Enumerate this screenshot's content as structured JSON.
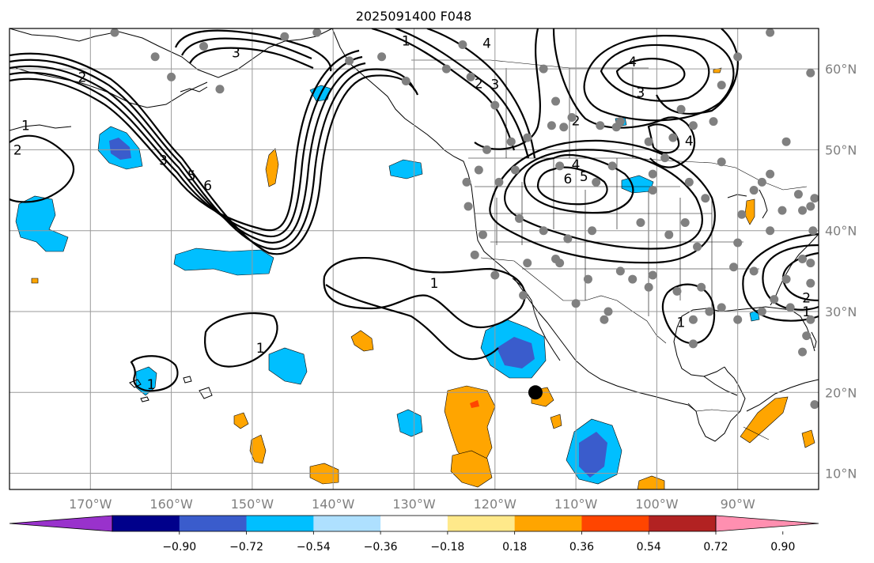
{
  "title": "2025091400 F048",
  "map": {
    "lon_range": [
      -180,
      -80
    ],
    "lat_range": [
      8,
      65
    ],
    "lon_ticks": [
      {
        "value": -170,
        "label": "170°W"
      },
      {
        "value": -160,
        "label": "160°W"
      },
      {
        "value": -150,
        "label": "150°W"
      },
      {
        "value": -140,
        "label": "140°W"
      },
      {
        "value": -130,
        "label": "130°W"
      },
      {
        "value": -120,
        "label": "120°W"
      },
      {
        "value": -110,
        "label": "110°W"
      },
      {
        "value": -100,
        "label": "100°W"
      },
      {
        "value": -90,
        "label": "90°W"
      }
    ],
    "lat_ticks": [
      {
        "value": 60,
        "label": "60°N"
      },
      {
        "value": 50,
        "label": "50°N"
      },
      {
        "value": 40,
        "label": "40°N"
      },
      {
        "value": 30,
        "label": "30°N"
      },
      {
        "value": 20,
        "label": "20°N"
      },
      {
        "value": 10,
        "label": "10°N"
      }
    ],
    "marker": {
      "lon": -115,
      "lat": 20,
      "color": "#000000"
    },
    "station_color": "#808080",
    "contour_labels": [
      {
        "text": "3",
        "lon": -152,
        "lat": 62
      },
      {
        "text": "2",
        "lon": -171,
        "lat": 59
      },
      {
        "text": "1",
        "lon": -178,
        "lat": 53
      },
      {
        "text": "2",
        "lon": -179,
        "lat": 50
      },
      {
        "text": "3",
        "lon": -161,
        "lat": 48.7
      },
      {
        "text": "5",
        "lon": -157.5,
        "lat": 46.8
      },
      {
        "text": "6",
        "lon": -155.5,
        "lat": 45.6
      },
      {
        "text": "1",
        "lon": -131,
        "lat": 63.5
      },
      {
        "text": "4",
        "lon": -121,
        "lat": 63.2
      },
      {
        "text": "2",
        "lon": -122,
        "lat": 58.2
      },
      {
        "text": "3",
        "lon": -120,
        "lat": 58.1
      },
      {
        "text": "4",
        "lon": -103,
        "lat": 60.9
      },
      {
        "text": "3",
        "lon": -102,
        "lat": 57.1
      },
      {
        "text": "2",
        "lon": -110,
        "lat": 53.6
      },
      {
        "text": "4",
        "lon": -96,
        "lat": 51.1
      },
      {
        "text": "4",
        "lon": -110,
        "lat": 48.2
      },
      {
        "text": "6",
        "lon": -111,
        "lat": 46.4
      },
      {
        "text": "5",
        "lon": -109,
        "lat": 46.7
      },
      {
        "text": "1",
        "lon": -127.5,
        "lat": 33.5
      },
      {
        "text": "1",
        "lon": -149,
        "lat": 25.5
      },
      {
        "text": "1",
        "lon": -162.5,
        "lat": 21
      },
      {
        "text": "1",
        "lon": -97,
        "lat": 28.7
      },
      {
        "text": "2",
        "lon": -81.5,
        "lat": 31.7
      },
      {
        "text": "1",
        "lon": -81.5,
        "lat": 30
      }
    ]
  },
  "colorbar": {
    "colors": [
      "#9932cc",
      "#00008b",
      "#3a5ccc",
      "#00bfff",
      "#aee0ff",
      "#ffffff",
      "#ffe98a",
      "#ffa500",
      "#ff4500",
      "#b22222",
      "#ff8fb0"
    ],
    "ticks": [
      {
        "value": -0.9,
        "label": "−0.90"
      },
      {
        "value": -0.72,
        "label": "−0.72"
      },
      {
        "value": -0.54,
        "label": "−0.54"
      },
      {
        "value": -0.36,
        "label": "−0.36"
      },
      {
        "value": -0.18,
        "label": "−0.18"
      },
      {
        "value": 0.18,
        "label": "0.18"
      },
      {
        "value": 0.36,
        "label": "0.36"
      },
      {
        "value": 0.54,
        "label": "0.54"
      },
      {
        "value": 0.72,
        "label": "0.72"
      },
      {
        "value": 0.9,
        "label": "0.90"
      }
    ]
  }
}
